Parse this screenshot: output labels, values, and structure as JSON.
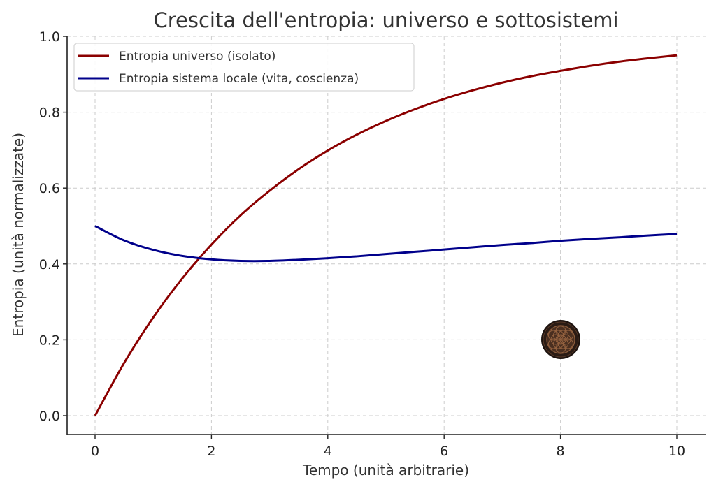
{
  "chart_data": {
    "type": "line",
    "title": "Crescita dell'entropia: universo e sottosistemi",
    "xlabel": "Tempo (unità arbitrarie)",
    "ylabel": "Entropia (unità normalizzate)",
    "xlim": [
      -0.5,
      10.5
    ],
    "ylim": [
      -0.05,
      1.01
    ],
    "xticks": [
      "0",
      "2",
      "4",
      "6",
      "8",
      "10"
    ],
    "yticks": [
      "0.0",
      "0.2",
      "0.4",
      "0.6",
      "0.8",
      "1.0"
    ],
    "grid": true,
    "legend_position": "upper left",
    "x": [
      0,
      0.5,
      1,
      1.5,
      2,
      2.5,
      3,
      3.5,
      4,
      4.5,
      5,
      5.5,
      6,
      6.5,
      7,
      7.5,
      8,
      8.5,
      9,
      9.5,
      10
    ],
    "series": [
      {
        "name": "Entropia universo (isolato)",
        "color": "#8b0000",
        "values": [
          0.0,
          0.139,
          0.259,
          0.362,
          0.451,
          0.528,
          0.593,
          0.65,
          0.699,
          0.741,
          0.777,
          0.808,
          0.835,
          0.858,
          0.878,
          0.895,
          0.909,
          0.922,
          0.933,
          0.942,
          0.95
        ]
      },
      {
        "name": "Entropia sistema locale (vita, coscienza)",
        "color": "#00008b",
        "values": [
          0.5,
          0.462,
          0.437,
          0.421,
          0.412,
          0.408,
          0.408,
          0.411,
          0.415,
          0.42,
          0.426,
          0.432,
          0.438,
          0.444,
          0.45,
          0.455,
          0.461,
          0.466,
          0.47,
          0.475,
          0.479
        ]
      }
    ],
    "annotations": [
      {
        "type": "image-marker",
        "description": "flower-of-life emblem",
        "x": 8,
        "y": 0.2
      }
    ]
  }
}
